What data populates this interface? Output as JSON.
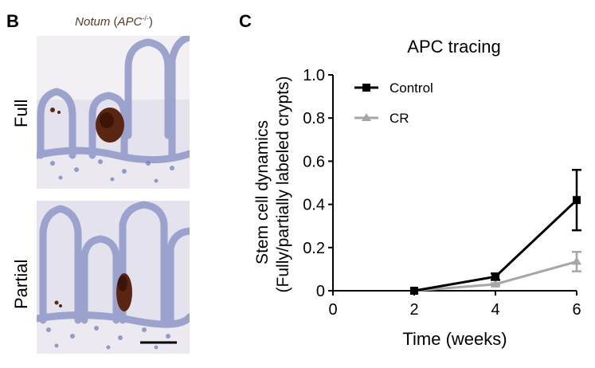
{
  "figure": {
    "panel_b_letter": "B",
    "panel_c_letter": "C",
    "micro_title_gene": "Notum",
    "micro_title_paren_open": " (",
    "micro_title_genotype": "APC",
    "micro_title_superscript": "-/-",
    "micro_title_paren_close": ")",
    "row_label_full": "Full",
    "row_label_partial": "Partial"
  },
  "chart_data": {
    "type": "line",
    "title": "APC tracing",
    "xlabel": "Time (weeks)",
    "ylabel_line1": "Stem cell dynamics",
    "ylabel_line2": "(Fully/partially labeled crypts)",
    "xlim": [
      0,
      6
    ],
    "ylim": [
      0,
      1.0
    ],
    "x_ticks": [
      "0",
      "2",
      "4",
      "6"
    ],
    "y_ticks": [
      "0",
      "0.2",
      "0.4",
      "0.6",
      "0.8",
      "1.0"
    ],
    "legend_position": "top-left",
    "series": [
      {
        "name": "Control",
        "color": "#000000",
        "marker": "square",
        "x": [
          2,
          4,
          6
        ],
        "y": [
          0.0,
          0.065,
          0.42
        ],
        "err": [
          0.0,
          0.015,
          0.14
        ]
      },
      {
        "name": "CR",
        "color": "#a6a6a6",
        "marker": "triangle",
        "x": [
          2,
          4,
          6
        ],
        "y": [
          0.0,
          0.03,
          0.135
        ],
        "err": [
          0.0,
          0.005,
          0.045
        ]
      }
    ]
  }
}
